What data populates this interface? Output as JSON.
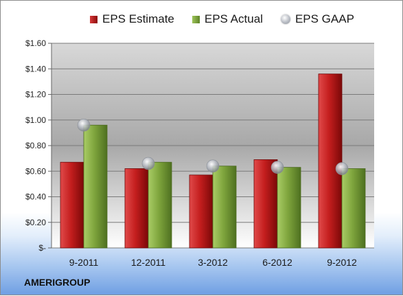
{
  "company": "AMERIGROUP",
  "legend": [
    {
      "label": "EPS Estimate",
      "swatch": "red"
    },
    {
      "label": "EPS Actual",
      "swatch": "green"
    },
    {
      "label": "EPS GAAP",
      "swatch": "dot"
    }
  ],
  "chart_data": {
    "type": "bar",
    "categories": [
      "9-2011",
      "12-2011",
      "3-2012",
      "6-2012",
      "9-2012"
    ],
    "series": [
      {
        "name": "EPS Estimate",
        "values": [
          0.67,
          0.62,
          0.57,
          0.69,
          1.36
        ],
        "color": "#c41e1e"
      },
      {
        "name": "EPS Actual",
        "values": [
          0.96,
          0.67,
          0.64,
          0.63,
          0.62
        ],
        "color": "#7fa53d"
      },
      {
        "name": "EPS GAAP",
        "values": [
          0.96,
          0.66,
          0.64,
          0.63,
          0.62
        ],
        "color": "#b8bcc4",
        "render": "marker"
      }
    ],
    "y_ticks": [
      {
        "value": 0,
        "label": "$-"
      },
      {
        "value": 0.2,
        "label": "$0.20"
      },
      {
        "value": 0.4,
        "label": "$0.40"
      },
      {
        "value": 0.6,
        "label": "$0.60"
      },
      {
        "value": 0.8,
        "label": "$0.80"
      },
      {
        "value": 1.0,
        "label": "$1.00"
      },
      {
        "value": 1.2,
        "label": "$1.20"
      },
      {
        "value": 1.4,
        "label": "$1.40"
      },
      {
        "value": 1.6,
        "label": "$1.60"
      }
    ],
    "ylim": [
      0,
      1.6
    ],
    "grid": true,
    "legend_position": "top"
  }
}
